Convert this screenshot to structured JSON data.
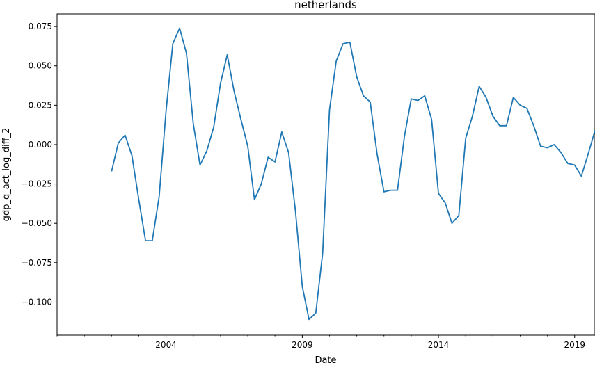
{
  "chart_data": {
    "type": "line",
    "title": "netherlands",
    "xlabel": "Date",
    "ylabel": "gdp_q_act_log_diff_2",
    "xlim": [
      "2000-01-01",
      "2019-10-01"
    ],
    "ylim": [
      -0.121,
      0.083
    ],
    "x_ticks": [
      {
        "date": "2004-01-01",
        "label": "2004"
      },
      {
        "date": "2009-01-01",
        "label": "2009"
      },
      {
        "date": "2014-01-01",
        "label": "2014"
      },
      {
        "date": "2019-01-01",
        "label": "2019"
      }
    ],
    "y_ticks": [
      {
        "value": 0.075,
        "label": "0.075"
      },
      {
        "value": 0.05,
        "label": "0.050"
      },
      {
        "value": 0.025,
        "label": "0.025"
      },
      {
        "value": 0.0,
        "label": "0.000"
      },
      {
        "value": -0.025,
        "label": "−0.025"
      },
      {
        "value": -0.05,
        "label": "−0.050"
      },
      {
        "value": -0.075,
        "label": "−0.075"
      },
      {
        "value": -0.1,
        "label": "−0.100"
      }
    ],
    "grid": false,
    "line_color": "#1f77b4",
    "series": [
      {
        "x": [
          "2002-01-01",
          "2002-04-01",
          "2002-07-01",
          "2002-10-01",
          "2003-01-01",
          "2003-04-01",
          "2003-07-01",
          "2003-10-01",
          "2004-01-01",
          "2004-04-01",
          "2004-07-01",
          "2004-10-01",
          "2005-01-01",
          "2005-04-01",
          "2005-07-01",
          "2005-10-01",
          "2006-01-01",
          "2006-04-01",
          "2006-07-01",
          "2006-10-01",
          "2007-01-01",
          "2007-04-01",
          "2007-07-01",
          "2007-10-01",
          "2008-01-01",
          "2008-04-01",
          "2008-07-01",
          "2008-10-01",
          "2009-01-01",
          "2009-04-01",
          "2009-07-01",
          "2009-10-01",
          "2010-01-01",
          "2010-04-01",
          "2010-07-01",
          "2010-10-01",
          "2011-01-01",
          "2011-04-01",
          "2011-07-01",
          "2011-10-01",
          "2012-01-01",
          "2012-04-01",
          "2012-07-01",
          "2012-10-01",
          "2013-01-01",
          "2013-04-01",
          "2013-07-01",
          "2013-10-01",
          "2014-01-01",
          "2014-04-01",
          "2014-07-01",
          "2014-10-01",
          "2015-01-01",
          "2015-04-01",
          "2015-07-01",
          "2015-10-01",
          "2016-01-01",
          "2016-04-01",
          "2016-07-01",
          "2016-10-01",
          "2017-01-01",
          "2017-04-01",
          "2017-07-01",
          "2017-10-01",
          "2018-01-01",
          "2018-04-01",
          "2018-07-01",
          "2018-10-01",
          "2019-01-01",
          "2019-04-01",
          "2019-07-01",
          "2019-10-01"
        ],
        "values": [
          -0.017,
          0.001,
          0.006,
          -0.007,
          -0.035,
          -0.061,
          -0.061,
          -0.033,
          0.021,
          0.064,
          0.074,
          0.058,
          0.013,
          -0.013,
          -0.004,
          0.011,
          0.039,
          0.057,
          0.034,
          0.016,
          -0.001,
          -0.035,
          -0.025,
          -0.008,
          -0.011,
          0.008,
          -0.005,
          -0.042,
          -0.09,
          -0.111,
          -0.107,
          -0.069,
          0.022,
          0.053,
          0.064,
          0.065,
          0.043,
          0.031,
          0.027,
          -0.006,
          -0.03,
          -0.029,
          -0.029,
          0.005,
          0.029,
          0.028,
          0.031,
          0.016,
          -0.031,
          -0.037,
          -0.05,
          -0.045,
          0.004,
          0.018,
          0.037,
          0.03,
          0.018,
          0.012,
          0.012,
          0.03,
          0.025,
          0.023,
          0.012,
          -0.001,
          -0.002,
          0.0,
          -0.005,
          -0.012,
          -0.013,
          -0.02,
          -0.006,
          0.009
        ]
      }
    ]
  }
}
